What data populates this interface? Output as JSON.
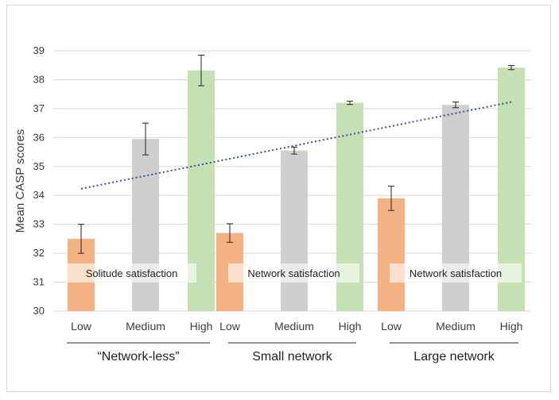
{
  "chart_data": {
    "type": "bar",
    "title": "",
    "xlabel": "",
    "ylabel": "Mean CASP scores",
    "ylim": [
      30,
      39
    ],
    "yticks": [
      "30",
      "31",
      "32",
      "33",
      "34",
      "35",
      "36",
      "37",
      "38",
      "39"
    ],
    "grid": true,
    "colors": {
      "Low": "#f4b183",
      "Medium": "#d0cece",
      "High": "#c5e0b4",
      "trend": "#2f5597",
      "grid": "#d9d9d9"
    },
    "groups": [
      {
        "label": "“Network-less”",
        "annotation": "Solitude satisfaction",
        "bars": [
          {
            "category": "Low",
            "value": 32.5,
            "error": 0.5
          },
          {
            "category": "Medium",
            "value": 35.95,
            "error": 0.55
          },
          {
            "category": "High",
            "value": 38.32,
            "error": 0.53
          }
        ]
      },
      {
        "label": "Small network",
        "annotation": "Network satisfaction",
        "bars": [
          {
            "category": "Low",
            "value": 32.7,
            "error": 0.32
          },
          {
            "category": "Medium",
            "value": 35.55,
            "error": 0.12
          },
          {
            "category": "High",
            "value": 37.2,
            "error": 0.06
          }
        ]
      },
      {
        "label": "Large network",
        "annotation": "Network satisfaction",
        "bars": [
          {
            "category": "Low",
            "value": 33.9,
            "error": 0.42
          },
          {
            "category": "Medium",
            "value": 37.13,
            "error": 0.1
          },
          {
            "category": "High",
            "value": 38.42,
            "error": 0.07
          }
        ]
      }
    ],
    "trendline": {
      "style": "dotted",
      "start": 34.23,
      "end": 37.23
    }
  }
}
